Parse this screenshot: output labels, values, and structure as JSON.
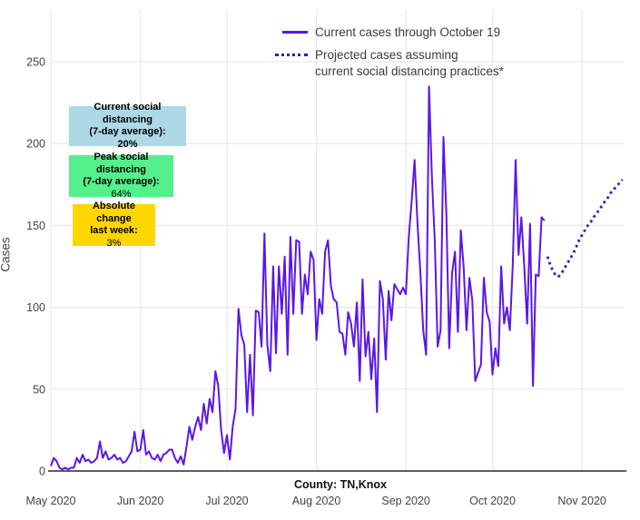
{
  "chart_data": {
    "type": "line",
    "title": "",
    "xlabel": "County: TN,Knox",
    "ylabel": "Cases",
    "ylim": [
      0,
      260
    ],
    "grid": true,
    "legend_position": "top-center",
    "y_ticks": [
      0,
      50,
      100,
      150,
      200,
      250
    ],
    "x_ticks": [
      {
        "label": "May 2020",
        "day": 0
      },
      {
        "label": "Jun 2020",
        "day": 31
      },
      {
        "label": "Jul 2020",
        "day": 61
      },
      {
        "label": "Aug 2020",
        "day": 92
      },
      {
        "label": "Sep 2020",
        "day": 123
      },
      {
        "label": "Oct 2020",
        "day": 153
      },
      {
        "label": "Nov 2020",
        "day": 184
      }
    ],
    "series": [
      {
        "name": "Current cases through October 19",
        "style": "solid",
        "color": "#5a17e8",
        "start_day": 0,
        "values": [
          3,
          8,
          6,
          2,
          1,
          2,
          1,
          2,
          2,
          8,
          5,
          10,
          6,
          7,
          5,
          6,
          8,
          18,
          8,
          12,
          7,
          8,
          10,
          7,
          8,
          5,
          6,
          9,
          12,
          24,
          12,
          13,
          25,
          10,
          12,
          8,
          7,
          10,
          6,
          10,
          11,
          13,
          13,
          8,
          5,
          9,
          4,
          15,
          27,
          19,
          27,
          33,
          25,
          41,
          29,
          44,
          36,
          61,
          52,
          25,
          11,
          22,
          7,
          27,
          38,
          99,
          83,
          77,
          36,
          71,
          34,
          98,
          97,
          76,
          145,
          77,
          61,
          125,
          72,
          125,
          96,
          131,
          71,
          143,
          96,
          141,
          140,
          96,
          120,
          108,
          134,
          129,
          80,
          105,
          96,
          134,
          141,
          113,
          105,
          103,
          85,
          84,
          71,
          97,
          90,
          76,
          103,
          55,
          117,
          70,
          85,
          56,
          81,
          36,
          116,
          105,
          68,
          110,
          92,
          114,
          111,
          108,
          112,
          108,
          143,
          165,
          190,
          151,
          122,
          86,
          71,
          235,
          179,
          141,
          76,
          86,
          204,
          157,
          75,
          121,
          134,
          85,
          147,
          125,
          86,
          118,
          104,
          55,
          60,
          65,
          118,
          97,
          91,
          59,
          75,
          64,
          125,
          90,
          100,
          86,
          125,
          190,
          132,
          155,
          125,
          90,
          151,
          52,
          120,
          119,
          155,
          153
        ]
      },
      {
        "name": "Projected cases assuming current social distancing practices*",
        "style": "dotted",
        "color": "#2d26a3",
        "start_day": 172,
        "values": [
          131,
          126,
          122,
          119,
          119,
          121,
          124,
          127,
          130,
          133,
          137,
          141,
          144,
          147,
          150,
          152,
          155,
          157,
          160,
          162,
          165,
          167,
          170,
          172,
          174,
          176,
          178
        ]
      }
    ]
  },
  "legend": {
    "items": [
      {
        "label": "Current cases through October 19",
        "swatch": "solid-line"
      },
      {
        "lines": [
          "Projected cases assuming",
          "current social distancing practices*"
        ],
        "swatch": "dotted-line"
      }
    ]
  },
  "annotations": {
    "boxes": [
      {
        "title_lines": [
          "Current social distancing",
          "(7-day average):"
        ],
        "value": "20%",
        "bg": "#add8e6"
      },
      {
        "title_lines": [
          "Peak social distancing",
          "(7-day average):"
        ],
        "value": "64%",
        "bg": "#54f08c"
      },
      {
        "title_lines": [
          "Absolute change",
          "last week:"
        ],
        "value": "3%",
        "bg": "#ffd700"
      }
    ]
  },
  "colors": {
    "current_line": "#5a17e8",
    "projected_line": "#2d26a3",
    "gridline": "#e9e9ec",
    "axis_line": "#2a2a2f",
    "tick_text": "#444444",
    "box_blue": "#add8e6",
    "box_green": "#54f08c",
    "box_yellow": "#ffd700"
  }
}
